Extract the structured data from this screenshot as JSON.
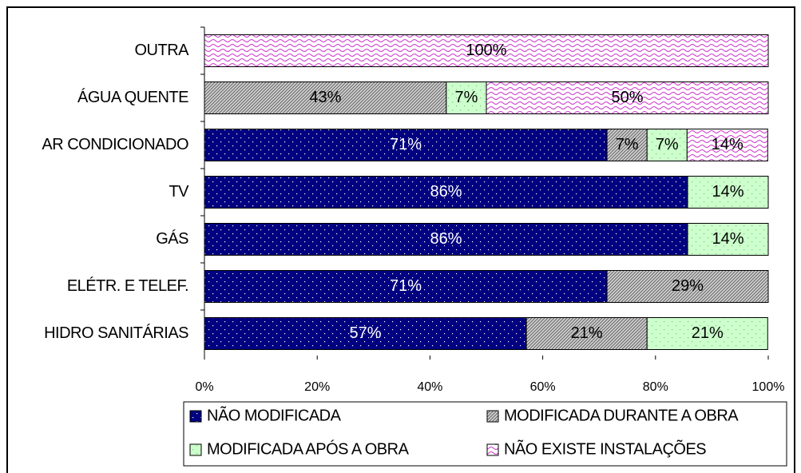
{
  "chart_data": {
    "type": "stacked_barh",
    "categories": [
      "OUTRA",
      "ÁGUA QUENTE",
      "AR CONDICIONADO",
      "TV",
      "GÁS",
      "ELÉTR. E TELEF.",
      "HIDRO SANITÁRIAS"
    ],
    "series": [
      {
        "name": "NÃO MODIFICADA",
        "color": "#000080",
        "pattern": "dots",
        "values": [
          null,
          null,
          71.4,
          85.7,
          85.7,
          71.4,
          57.1
        ],
        "value_labels": [
          null,
          null,
          "71%",
          "86%",
          "86%",
          "71%",
          "57%"
        ]
      },
      {
        "name": "MODIFICADA DURANTE A OBRA",
        "color": "#a0a0a0",
        "pattern": "hatch",
        "values": [
          null,
          42.9,
          7.1,
          null,
          null,
          28.6,
          21.4
        ],
        "value_labels": [
          null,
          "43%",
          "7%",
          null,
          null,
          "29%",
          "21%"
        ]
      },
      {
        "name": "MODIFICADA APÓS A OBRA",
        "color": "#ccffcc",
        "pattern": "dots",
        "values": [
          null,
          7.1,
          7.1,
          14.3,
          14.3,
          null,
          21.4
        ],
        "value_labels": [
          null,
          "7%",
          "7%",
          "14%",
          "14%",
          null,
          "21%"
        ]
      },
      {
        "name": "NÃO EXISTE INSTALAÇÕES",
        "color": "#cc33cc",
        "pattern": "waves",
        "values": [
          100,
          50,
          14.3,
          null,
          null,
          null,
          null
        ],
        "value_labels": [
          "100%",
          "50%",
          "14%",
          null,
          null,
          null,
          null
        ]
      }
    ],
    "xlim": [
      0,
      100
    ],
    "xticks": [
      {
        "value": 0,
        "label": "0%"
      },
      {
        "value": 20,
        "label": "20%"
      },
      {
        "value": 40,
        "label": "40%"
      },
      {
        "value": 60,
        "label": "60%"
      },
      {
        "value": 80,
        "label": "80%"
      },
      {
        "value": 100,
        "label": "100%"
      }
    ],
    "legend": "bottom"
  }
}
